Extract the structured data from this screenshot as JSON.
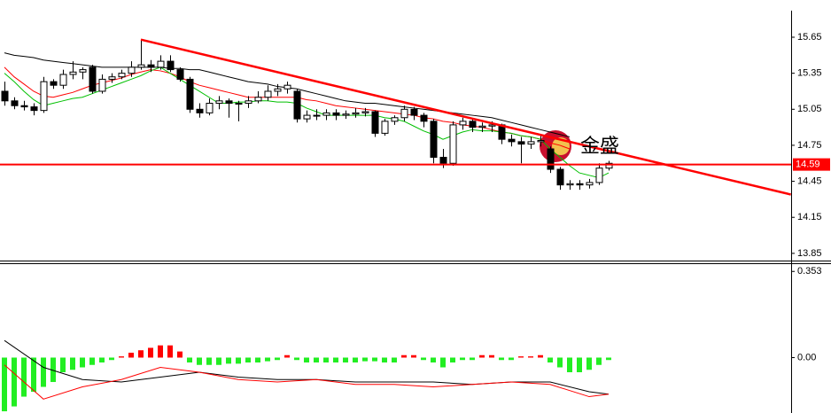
{
  "chart_data": [
    {
      "type": "candlestick",
      "ylim": [
        13.79,
        15.96
      ],
      "yticks": [
        15.65,
        15.35,
        15.05,
        14.75,
        14.45,
        14.15,
        13.85
      ],
      "up_color": "#ffffff",
      "down_color": "#000000",
      "open": [
        15.2,
        15.12,
        15.08,
        15.07,
        15.04,
        15.28,
        15.25,
        15.34,
        15.36,
        15.4,
        15.2,
        15.3,
        15.32,
        15.35,
        15.4,
        15.42,
        15.4,
        15.45,
        15.38,
        15.3,
        15.05,
        15.02,
        15.1,
        15.12,
        15.1,
        15.1,
        15.12,
        15.15,
        15.2,
        15.22,
        15.2,
        14.97,
        15.0,
        15.0,
        15.02,
        15.0,
        15.01,
        15.02,
        15.03,
        14.85,
        14.95,
        14.98,
        15.05,
        15.0,
        14.95,
        14.65,
        14.6,
        14.92,
        14.95,
        14.9,
        14.91,
        14.92,
        14.8,
        14.78,
        14.76,
        14.78,
        14.72,
        14.55,
        14.42,
        14.43,
        14.42,
        14.44,
        14.56
      ],
      "high": [
        15.28,
        15.15,
        15.12,
        15.1,
        15.32,
        15.3,
        15.38,
        15.45,
        15.4,
        15.42,
        15.34,
        15.35,
        15.38,
        15.45,
        15.63,
        15.46,
        15.5,
        15.5,
        15.4,
        15.32,
        15.1,
        15.14,
        15.16,
        15.14,
        15.12,
        15.16,
        15.2,
        15.25,
        15.26,
        15.28,
        15.22,
        15.04,
        15.05,
        15.05,
        15.05,
        15.04,
        15.06,
        15.06,
        15.04,
        14.97,
        15.0,
        15.08,
        15.07,
        15.02,
        14.97,
        14.72,
        14.95,
        14.98,
        14.97,
        14.94,
        14.95,
        14.93,
        14.84,
        14.82,
        14.82,
        14.84,
        14.74,
        14.57,
        14.46,
        14.46,
        14.47,
        14.6,
        14.62
      ],
      "low": [
        15.08,
        15.05,
        15.04,
        15.0,
        15.02,
        15.22,
        15.22,
        15.3,
        15.3,
        15.18,
        15.18,
        15.27,
        15.3,
        15.32,
        15.38,
        15.36,
        15.38,
        15.36,
        15.28,
        15.02,
        14.98,
        15.0,
        15.05,
        14.98,
        14.95,
        15.06,
        15.1,
        15.12,
        15.16,
        15.18,
        14.94,
        14.94,
        14.96,
        14.96,
        14.96,
        14.97,
        14.98,
        14.99,
        14.82,
        14.83,
        14.92,
        14.95,
        14.96,
        14.9,
        14.6,
        14.56,
        14.58,
        14.88,
        14.86,
        14.86,
        14.86,
        14.76,
        14.74,
        14.6,
        14.72,
        14.74,
        14.52,
        14.38,
        14.38,
        14.38,
        14.39,
        14.42,
        14.54
      ],
      "close": [
        15.12,
        15.08,
        15.07,
        15.04,
        15.28,
        15.25,
        15.34,
        15.36,
        15.38,
        15.2,
        15.3,
        15.32,
        15.35,
        15.4,
        15.42,
        15.4,
        15.45,
        15.38,
        15.3,
        15.05,
        15.02,
        15.1,
        15.12,
        15.1,
        15.1,
        15.12,
        15.15,
        15.2,
        15.22,
        15.25,
        14.97,
        15.0,
        15.0,
        15.02,
        15.0,
        15.01,
        15.02,
        15.03,
        14.85,
        14.95,
        14.98,
        15.05,
        15.0,
        14.95,
        14.65,
        14.6,
        14.92,
        14.95,
        14.9,
        14.91,
        14.92,
        14.8,
        14.78,
        14.76,
        14.78,
        14.79,
        14.55,
        14.42,
        14.43,
        14.42,
        14.44,
        14.56,
        14.6
      ],
      "series": [
        {
          "color": "#000000",
          "values": [
            15.52,
            15.5,
            15.49,
            15.48,
            15.46,
            15.45,
            15.44,
            15.43,
            15.42,
            15.41,
            15.4,
            15.4,
            15.4,
            15.4,
            15.4,
            15.4,
            15.4,
            15.39,
            15.39,
            15.38,
            15.38,
            15.36,
            15.34,
            15.32,
            15.3,
            15.28,
            15.27,
            15.26,
            15.24,
            15.23,
            15.22,
            15.2,
            15.18,
            15.16,
            15.14,
            15.12,
            15.11,
            15.1,
            15.1,
            15.09,
            15.08,
            15.07,
            15.06,
            15.05,
            15.04,
            15.03,
            15.02,
            15.01,
            15.0,
            14.99,
            14.98,
            14.96,
            14.94,
            14.92,
            14.9,
            14.88,
            14.86,
            14.84,
            14.82,
            null,
            null,
            null,
            null
          ]
        },
        {
          "color": "#ff0000",
          "values": [
            15.4,
            15.32,
            15.26,
            15.2,
            15.16,
            15.15,
            15.17,
            15.19,
            15.22,
            15.25,
            15.27,
            15.29,
            15.31,
            15.34,
            15.36,
            15.38,
            15.37,
            15.35,
            15.32,
            15.28,
            15.25,
            15.23,
            15.21,
            15.19,
            15.17,
            15.15,
            15.15,
            15.15,
            15.15,
            15.15,
            15.15,
            15.13,
            15.12,
            15.1,
            15.08,
            15.07,
            15.06,
            15.05,
            15.04,
            15.03,
            15.02,
            15.01,
            15.0,
            14.98,
            14.97,
            14.95,
            14.94,
            14.92,
            14.91,
            14.9,
            14.88,
            14.86,
            14.85,
            14.83,
            14.82,
            14.8,
            14.77,
            14.75,
            14.72,
            null,
            null,
            null,
            null
          ]
        },
        {
          "color": "#00c000",
          "values": [
            15.35,
            15.28,
            15.2,
            15.13,
            15.08,
            15.1,
            15.12,
            15.14,
            15.15,
            15.18,
            15.21,
            15.24,
            15.27,
            15.3,
            15.33,
            15.37,
            15.4,
            15.35,
            15.3,
            15.25,
            15.2,
            15.15,
            15.1,
            15.1,
            15.11,
            15.11,
            15.12,
            15.12,
            15.11,
            15.11,
            15.1,
            15.06,
            15.03,
            15.0,
            15.0,
            15.0,
            15.0,
            15.0,
            15.0,
            14.98,
            14.97,
            14.95,
            14.91,
            14.87,
            14.84,
            14.8,
            14.83,
            14.86,
            14.88,
            14.87,
            14.87,
            14.86,
            14.85,
            14.83,
            14.82,
            14.8,
            14.72,
            14.65,
            14.58,
            14.52,
            14.5,
            14.48,
            14.52
          ]
        }
      ],
      "trendline": {
        "color": "#ff0000",
        "from": [
          14,
          15.63
        ],
        "to": [
          80.7,
          14.34
        ]
      },
      "hline": {
        "value": 14.59,
        "color": "#ff0000"
      },
      "watermark": "金盛"
    },
    {
      "type": "histogram",
      "ylim": [
        -0.227,
        0.383
      ],
      "yticks": [
        0.353,
        {
          "value": 0,
          "label": "0.00"
        }
      ],
      "up_color": "#ff0000",
      "down_color": "#22ee22",
      "values": [
        -0.22,
        -0.2,
        -0.16,
        -0.14,
        -0.12,
        -0.1,
        -0.06,
        -0.05,
        -0.04,
        -0.03,
        -0.02,
        -0.01,
        0.005,
        0.02,
        0.03,
        0.04,
        0.05,
        0.05,
        0.025,
        -0.02,
        -0.03,
        -0.03,
        -0.03,
        -0.025,
        -0.025,
        -0.02,
        -0.02,
        -0.015,
        -0.01,
        0.01,
        -0.01,
        -0.02,
        -0.02,
        -0.02,
        -0.02,
        -0.02,
        -0.02,
        -0.015,
        -0.015,
        -0.02,
        -0.02,
        0.01,
        0.01,
        -0.01,
        -0.02,
        -0.04,
        -0.02,
        -0.01,
        -0.01,
        0.01,
        0.01,
        -0.01,
        -0.01,
        0.005,
        0.005,
        0.01,
        -0.02,
        -0.04,
        -0.06,
        -0.06,
        -0.05,
        -0.03,
        -0.01
      ],
      "series": [
        {
          "color": "#000000",
          "x": [
            0,
            4,
            8,
            12,
            16,
            20,
            24,
            28,
            32,
            36,
            40,
            44,
            48,
            52,
            56,
            60,
            62
          ],
          "values": [
            0.07,
            -0.04,
            -0.09,
            -0.1,
            -0.08,
            -0.06,
            -0.08,
            -0.09,
            -0.09,
            -0.1,
            -0.1,
            -0.1,
            -0.11,
            -0.1,
            -0.1,
            -0.14,
            -0.15
          ]
        },
        {
          "color": "#ff0000",
          "x": [
            0,
            4,
            8,
            12,
            16,
            20,
            24,
            28,
            32,
            36,
            40,
            44,
            48,
            52,
            56,
            60,
            62
          ],
          "values": [
            -0.03,
            -0.17,
            -0.12,
            -0.09,
            -0.04,
            -0.06,
            -0.09,
            -0.1,
            -0.09,
            -0.11,
            -0.11,
            -0.12,
            -0.11,
            -0.1,
            -0.11,
            -0.16,
            -0.15
          ]
        }
      ]
    }
  ]
}
